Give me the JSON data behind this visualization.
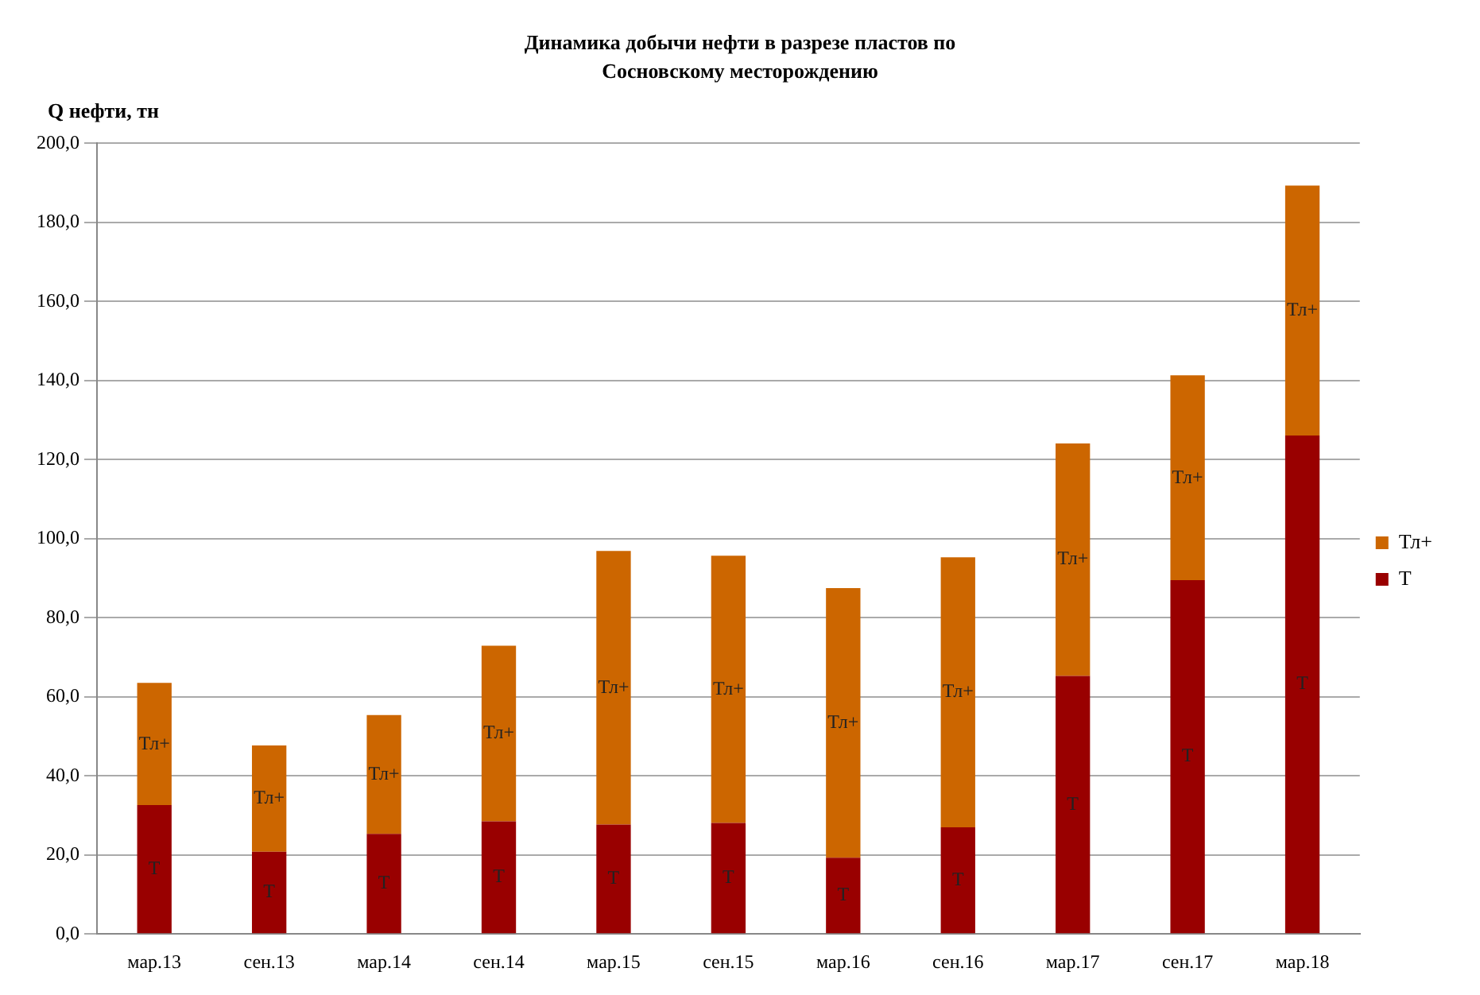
{
  "chart_data": {
    "type": "bar",
    "title": "Динамика  добычи нефти в разрезе  пластов  по\nСосновскому  месторождению",
    "ylabel": "Q нефти, тн",
    "stacked": true,
    "grid": "y",
    "legend": "right",
    "categories": [
      "мар.13",
      "сен.13",
      "мар.14",
      "сен.14",
      "мар.15",
      "сен.15",
      "мар.16",
      "сен.16",
      "мар.17",
      "сен.17",
      "мар.18"
    ],
    "series": [
      {
        "name": "Т",
        "color": "#990000",
        "values": [
          32.6,
          20.8,
          25.3,
          28.5,
          27.7,
          28.1,
          19.3,
          27.0,
          65.3,
          89.5,
          126.1
        ]
      },
      {
        "name": "Тл+",
        "color": "#cc6600",
        "values": [
          30.9,
          26.9,
          30.1,
          44.4,
          69.2,
          67.6,
          68.2,
          68.3,
          58.8,
          51.8,
          63.2
        ]
      }
    ],
    "ylim": [
      0,
      200
    ],
    "yticks": [
      {
        "value": 0,
        "label": "0,0"
      },
      {
        "value": 20,
        "label": "20,0"
      },
      {
        "value": 40,
        "label": "40,0"
      },
      {
        "value": 60,
        "label": "60,0"
      },
      {
        "value": 80,
        "label": "80,0"
      },
      {
        "value": 100,
        "label": "100,0"
      },
      {
        "value": 120,
        "label": "120,0"
      },
      {
        "value": 140,
        "label": "140,0"
      },
      {
        "value": 160,
        "label": "160,0"
      },
      {
        "value": 180,
        "label": "180,0"
      },
      {
        "value": 200,
        "label": "200,0"
      }
    ]
  }
}
